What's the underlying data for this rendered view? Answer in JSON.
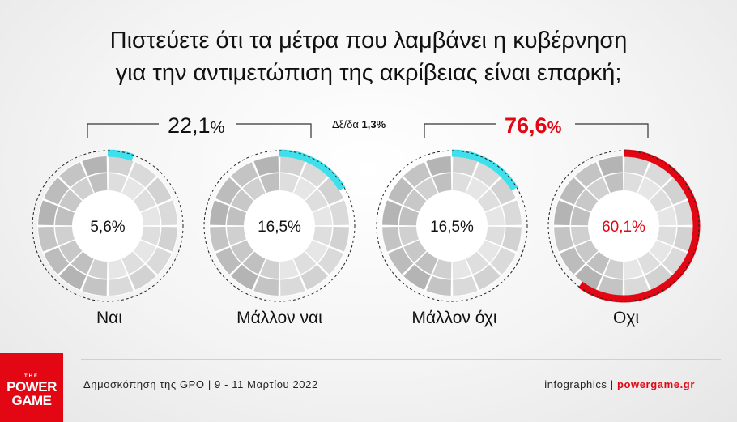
{
  "title_lines": [
    "Πιστεύετε ότι τα μέτρα που λαμβάνει η κυβέρνηση",
    "για την αντιμετώπιση της ακρίβειας είναι επαρκή;"
  ],
  "groups": {
    "yes": {
      "value": "22,1",
      "unit": "%"
    },
    "no": {
      "value": "76,6",
      "unit": "%"
    }
  },
  "dkna": {
    "label": "Δξ/δα",
    "value": "1,3%"
  },
  "chart_data": {
    "type": "pie",
    "categories": [
      "Ναι",
      "Μάλλον ναι",
      "Μάλλον όχι",
      "Οχι"
    ],
    "values": [
      5.6,
      16.5,
      16.5,
      60.1
    ],
    "value_labels": [
      "5,6%",
      "16,5%",
      "16,5%",
      "60,1%"
    ],
    "groups": [
      {
        "label": "22,1%",
        "members": [
          "Ναι",
          "Μάλλον ναι"
        ]
      },
      {
        "label": "76,6%",
        "members": [
          "Μάλλον όχι",
          "Οχι"
        ]
      }
    ],
    "other": {
      "label": "Δξ/δα",
      "value": 1.3
    }
  },
  "colors": {
    "accent_cyan": "#3ee0ec",
    "accent_red": "#e30613",
    "ring_gray": "#c9c9c9"
  },
  "footer": {
    "source": "Δημοσκόπηση της GPO | 9 - 11 Μαρτίου 2022",
    "credit_prefix": "infographics | ",
    "site": "powergame.gr"
  },
  "logo": {
    "line0": "THE",
    "line1": "POWER",
    "line2": "GAME"
  }
}
